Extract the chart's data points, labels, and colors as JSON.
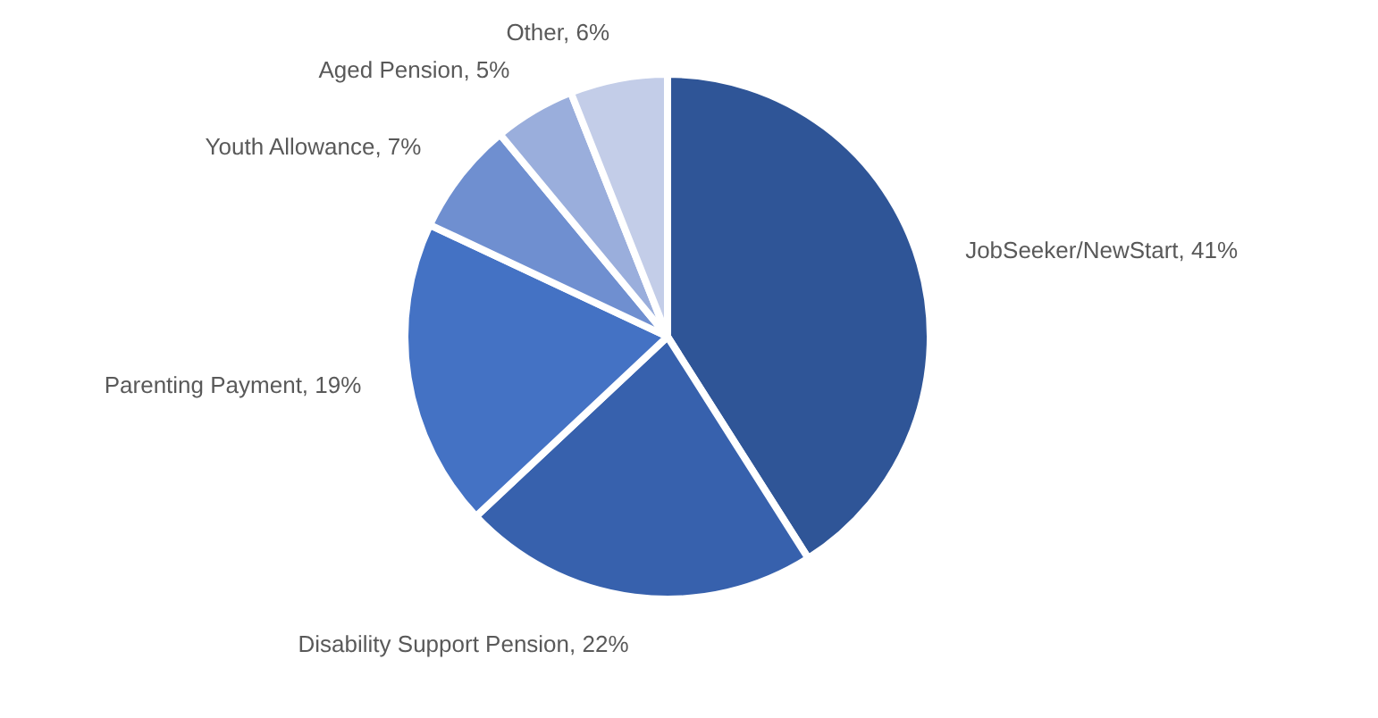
{
  "chart_data": {
    "type": "pie",
    "categories": [
      "JobSeeker/NewStart",
      "Disability Support Pension",
      "Parenting Payment",
      "Youth Allowance",
      "Aged Pension",
      "Other"
    ],
    "values": [
      41,
      22,
      19,
      7,
      5,
      6
    ],
    "value_labels": [
      "41%",
      "22%",
      "19%",
      "7%",
      "5%",
      "6%"
    ],
    "colors": [
      "#2f5597",
      "#3761ad",
      "#4472c4",
      "#6f8fd0",
      "#9aaedc",
      "#c3cde8"
    ]
  }
}
